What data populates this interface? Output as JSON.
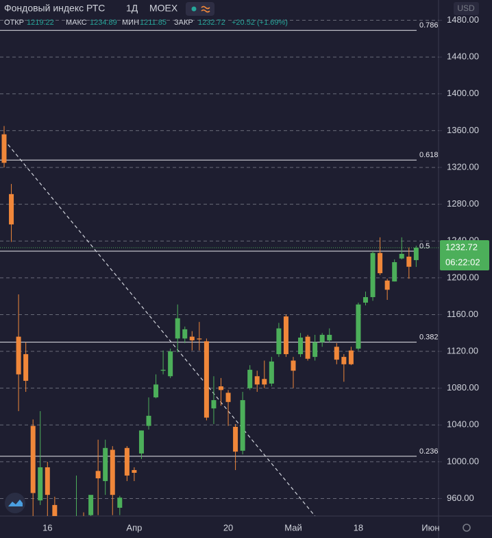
{
  "header": {
    "title": "Фондовый индекс РТС",
    "interval": "1Д",
    "exchange": "MOEX",
    "open_label": "ОТКР",
    "high_label": "МАКС",
    "low_label": "МИН",
    "close_label": "ЗАКР",
    "change": "+20.52 (+1.69%)",
    "currency": "USD"
  },
  "chart_data": {
    "type": "candlestick",
    "categories": [
      null,
      null,
      null,
      null,
      null,
      null,
      "16",
      null,
      null,
      null,
      null,
      null,
      null,
      null,
      null,
      null,
      null,
      null,
      "Апр",
      null,
      null,
      null,
      null,
      null,
      null,
      null,
      null,
      null,
      null,
      null,
      null,
      "20",
      null,
      null,
      null,
      null,
      null,
      null,
      null,
      null,
      "Май",
      null,
      null,
      null,
      null,
      null,
      null,
      null,
      null,
      "18",
      null,
      null,
      null,
      null,
      null,
      null,
      null,
      null
    ],
    "future_categories": [
      null,
      "Июн"
    ],
    "open": [
      1356,
      1291,
      1136,
      1117,
      1039,
      958,
      994,
      953,
      935,
      928,
      932,
      938,
      942,
      990,
      979,
      1013,
      950,
      1015,
      991,
      1009,
      1039,
      1070,
      1099,
      1093,
      1134,
      1134,
      1136,
      1134,
      1131,
      1058,
      1082,
      1075,
      1038,
      1012,
      1080,
      1093,
      1090,
      1085,
      1117,
      1158,
      1110,
      1117,
      1136,
      1114,
      1130,
      1132,
      1125,
      1114,
      1121,
      1123,
      1173,
      1179,
      1227,
      1197,
      1196,
      1221,
      1223,
      1219.22
    ],
    "high": [
      1365,
      1302,
      1182,
      1130,
      1046,
      1055,
      1000,
      962,
      940,
      935,
      985,
      945,
      963,
      1024,
      1024,
      1017,
      963,
      1017,
      994,
      1034,
      1070,
      1095,
      1121,
      1123,
      1171,
      1147,
      1142,
      1152,
      1134,
      1093,
      1091,
      1078,
      1041,
      1076,
      1105,
      1099,
      1110,
      1114,
      1151,
      1160,
      1114,
      1140,
      1138,
      1138,
      1140,
      1145,
      1129,
      1117,
      1125,
      1173,
      1185,
      1229,
      1244,
      1199,
      1220,
      1244,
      1233,
      1234.89
    ],
    "low": [
      1320,
      1239,
      1055,
      1076,
      930,
      953,
      940,
      925,
      920,
      915,
      925,
      926,
      935,
      942,
      964,
      942,
      942,
      979,
      979,
      1003,
      1035,
      1069,
      1095,
      1091,
      1119,
      1129,
      1121,
      1121,
      1045,
      1041,
      1061,
      1039,
      991,
      1008,
      1078,
      1076,
      1080,
      1082,
      1114,
      1114,
      1080,
      1114,
      1110,
      1110,
      1125,
      1130,
      1106,
      1087,
      1105,
      1121,
      1170,
      1175,
      1203,
      1176,
      1196,
      1220,
      1199,
      1211.85
    ],
    "close": [
      1325,
      1258,
      1095,
      1088,
      966,
      994,
      964,
      935,
      928,
      932,
      938,
      930,
      964,
      982,
      1015,
      964,
      961,
      985,
      988,
      1034,
      1050,
      1084,
      1100,
      1120,
      1156,
      1144,
      1132,
      1133,
      1048,
      1067,
      1078,
      1065,
      1011,
      1067,
      1100,
      1084,
      1084,
      1109,
      1145,
      1117,
      1099,
      1135,
      1112,
      1130,
      1138,
      1138,
      1111,
      1106,
      1106,
      1171,
      1179,
      1227,
      1205,
      1187,
      1217,
      1226,
      1212,
      1232.72
    ],
    "up_color": "#4caf5a",
    "down_color": "#f0873a",
    "ylim": [
      941,
      1502
    ],
    "yticks": [
      {
        "value": 960,
        "label": "960.00"
      },
      {
        "value": 1000,
        "label": "1000.00"
      },
      {
        "value": 1040,
        "label": "1040.00"
      },
      {
        "value": 1080,
        "label": "1080.00"
      },
      {
        "value": 1120,
        "label": "1120.00"
      },
      {
        "value": 1160,
        "label": "1160.00"
      },
      {
        "value": 1200,
        "label": "1200.00"
      },
      {
        "value": 1240,
        "label": "1240.00"
      },
      {
        "value": 1280,
        "label": "1280.00"
      },
      {
        "value": 1320,
        "label": "1320.00"
      },
      {
        "value": 1360,
        "label": "1360.00"
      },
      {
        "value": 1400,
        "label": "1400.00"
      },
      {
        "value": 1440,
        "label": "1440.00"
      },
      {
        "value": 1480,
        "label": "1480.00"
      }
    ],
    "grid": true,
    "fib_levels": [
      {
        "level": 0.786,
        "price": 1469
      },
      {
        "level": 0.618,
        "price": 1328
      },
      {
        "level": 0.5,
        "price": 1229
      },
      {
        "level": 0.382,
        "price": 1130
      },
      {
        "level": 0.236,
        "price": 1006
      }
    ],
    "trendline": {
      "start_index": 0,
      "start_price": 1350,
      "end_index": 43,
      "end_price": 941
    },
    "countdown": "06:22:02"
  }
}
